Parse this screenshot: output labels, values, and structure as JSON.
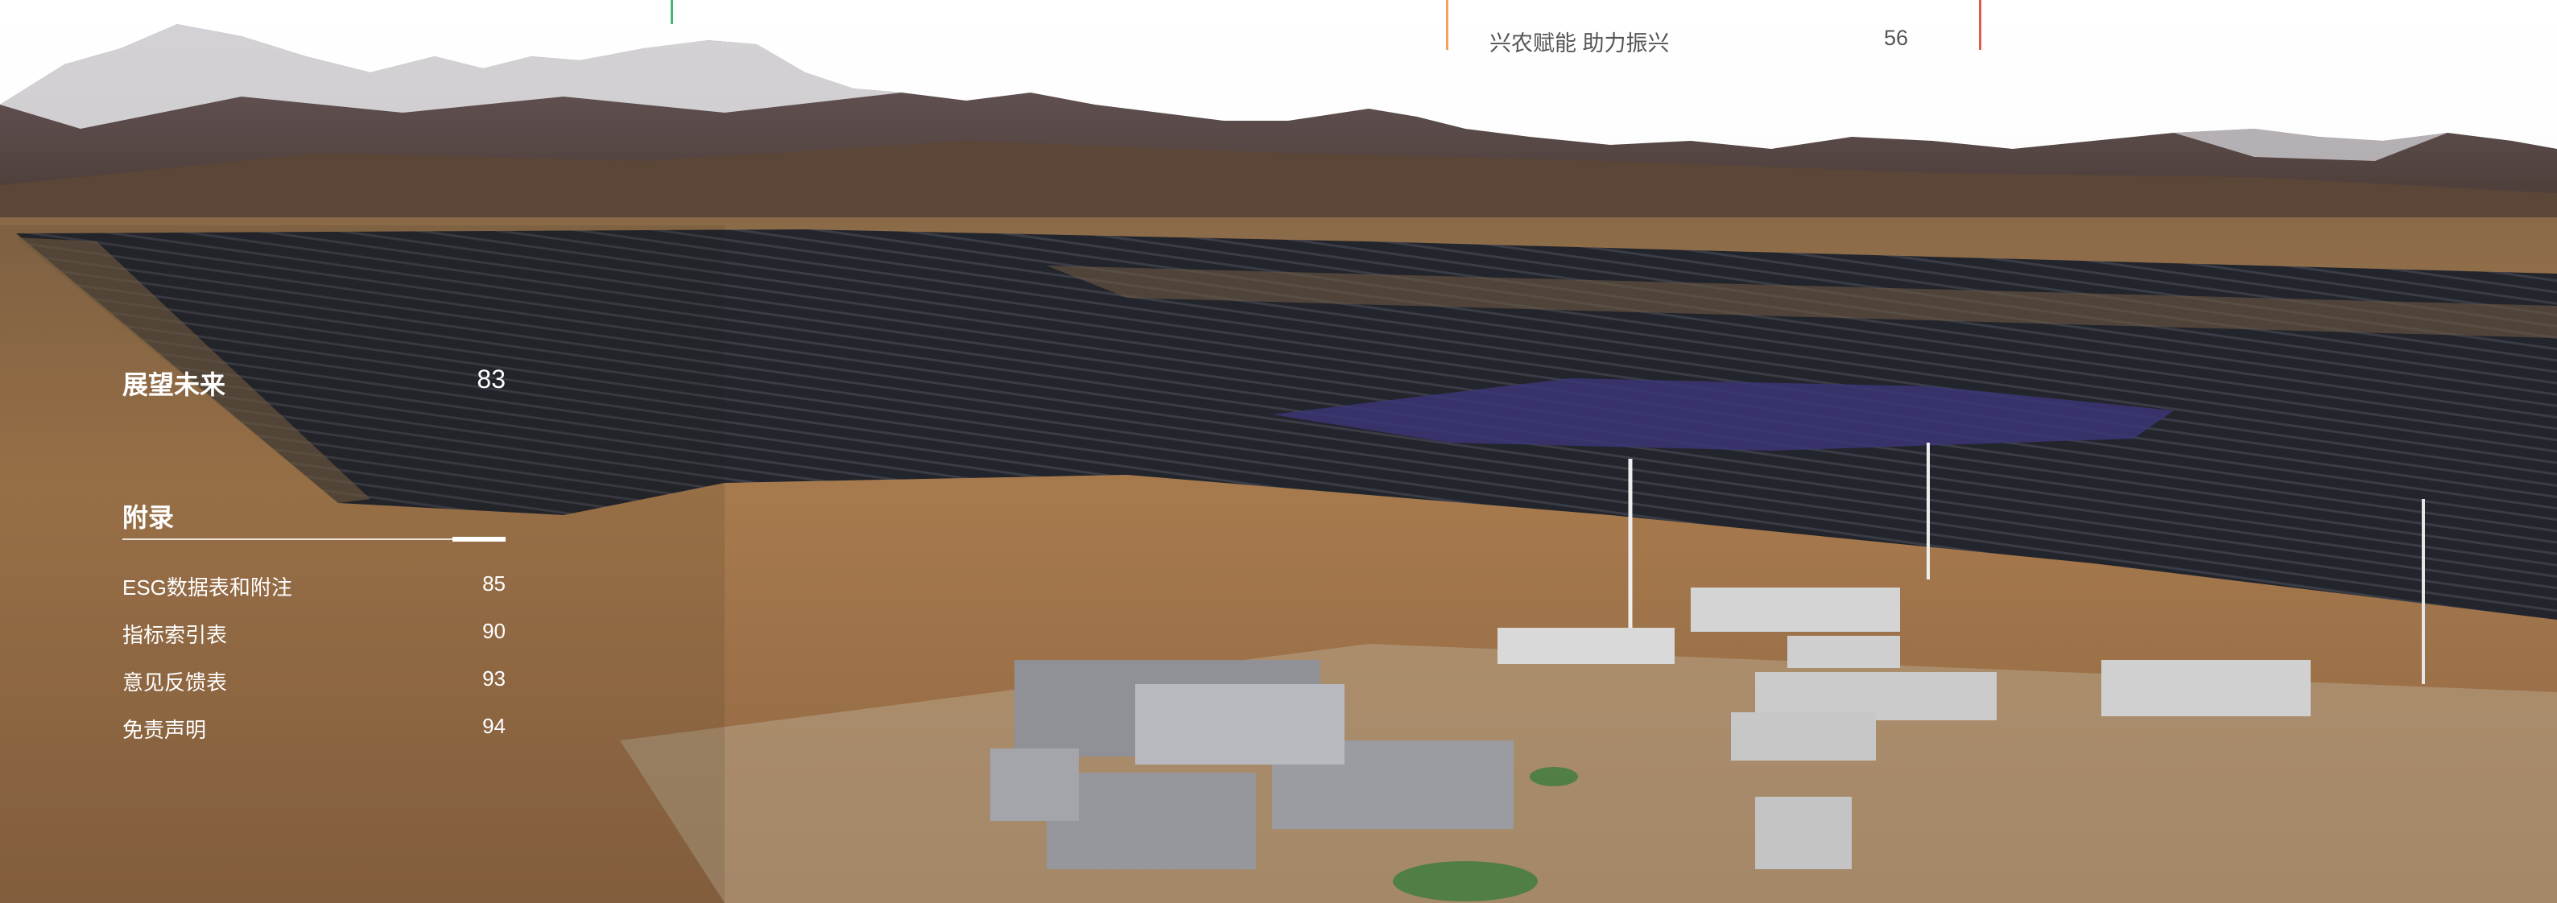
{
  "header": {
    "item": {
      "title": "兴农赋能 助力振兴",
      "page": "56"
    },
    "divider_colors": [
      "#3cb878",
      "#f0a35a",
      "#e05a4f"
    ]
  },
  "toc": {
    "section_future": {
      "title": "展望未来",
      "page": "83"
    },
    "section_appendix": {
      "title": "附录"
    },
    "appendix_items": [
      {
        "title": "ESG数据表和附注",
        "page": "85"
      },
      {
        "title": "指标索引表",
        "page": "90"
      },
      {
        "title": "意见反馈表",
        "page": "93"
      },
      {
        "title": "免责声明",
        "page": "94"
      }
    ]
  }
}
